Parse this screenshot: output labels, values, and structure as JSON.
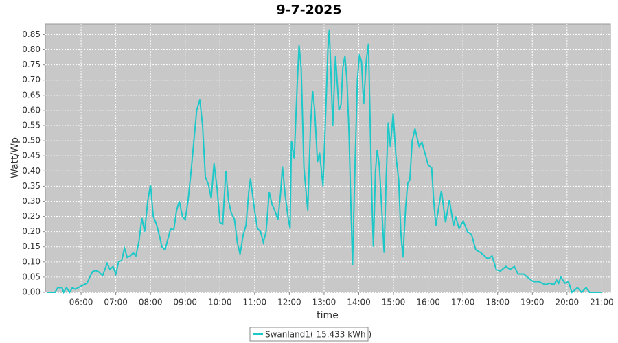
{
  "chart_data": {
    "type": "line",
    "title": "9-7-2025",
    "x_label": "time",
    "y_label": "Watt/Wp",
    "xlim": [
      4.97,
      21.25
    ],
    "ylim": [
      0,
      0.885
    ],
    "grid": true,
    "legend": "bottom",
    "xticks": [
      {
        "value": 6,
        "label": "06:00"
      },
      {
        "value": 7,
        "label": "07:00"
      },
      {
        "value": 8,
        "label": "08:00"
      },
      {
        "value": 9,
        "label": "09:00"
      },
      {
        "value": 10,
        "label": "10:00"
      },
      {
        "value": 11,
        "label": "11:00"
      },
      {
        "value": 12,
        "label": "12:00"
      },
      {
        "value": 13,
        "label": "13:00"
      },
      {
        "value": 14,
        "label": "14:00"
      },
      {
        "value": 15,
        "label": "15:00"
      },
      {
        "value": 16,
        "label": "16:00"
      },
      {
        "value": 17,
        "label": "17:00"
      },
      {
        "value": 18,
        "label": "18:00"
      },
      {
        "value": 19,
        "label": "19:00"
      },
      {
        "value": 20,
        "label": "20:00"
      },
      {
        "value": 21,
        "label": "21:00"
      }
    ],
    "yticks": [
      {
        "value": 0,
        "label": "0.00"
      },
      {
        "value": 0.05,
        "label": "0.05"
      },
      {
        "value": 0.1,
        "label": "0.10"
      },
      {
        "value": 0.15,
        "label": "0.15"
      },
      {
        "value": 0.2,
        "label": "0.20"
      },
      {
        "value": 0.25,
        "label": "0.25"
      },
      {
        "value": 0.3,
        "label": "0.30"
      },
      {
        "value": 0.35,
        "label": "0.35"
      },
      {
        "value": 0.4,
        "label": "0.40"
      },
      {
        "value": 0.45,
        "label": "0.45"
      },
      {
        "value": 0.5,
        "label": "0.50"
      },
      {
        "value": 0.55,
        "label": "0.55"
      },
      {
        "value": 0.6,
        "label": "0.60"
      },
      {
        "value": 0.65,
        "label": "0.65"
      },
      {
        "value": 0.7,
        "label": "0.70"
      },
      {
        "value": 0.75,
        "label": "0.75"
      },
      {
        "value": 0.8,
        "label": "0.80"
      },
      {
        "value": 0.85,
        "label": "0.85"
      }
    ],
    "x": [
      5.01,
      5.25,
      5.33,
      5.45,
      5.5,
      5.58,
      5.67,
      5.75,
      5.83,
      5.92,
      6.0,
      6.08,
      6.17,
      6.25,
      6.33,
      6.42,
      6.5,
      6.62,
      6.75,
      6.83,
      6.92,
      7.0,
      7.08,
      7.17,
      7.25,
      7.33,
      7.42,
      7.5,
      7.58,
      7.67,
      7.75,
      7.83,
      7.92,
      8.0,
      8.08,
      8.17,
      8.25,
      8.33,
      8.42,
      8.5,
      8.58,
      8.67,
      8.75,
      8.83,
      8.92,
      9.0,
      9.08,
      9.17,
      9.25,
      9.33,
      9.42,
      9.5,
      9.58,
      9.67,
      9.75,
      9.83,
      9.92,
      10.0,
      10.08,
      10.17,
      10.25,
      10.33,
      10.42,
      10.5,
      10.58,
      10.67,
      10.75,
      10.83,
      10.88,
      11.0,
      11.08,
      11.17,
      11.25,
      11.33,
      11.42,
      11.5,
      11.58,
      11.67,
      11.75,
      11.8,
      11.88,
      11.96,
      12.02,
      12.06,
      12.14,
      12.22,
      12.28,
      12.34,
      12.42,
      12.53,
      12.61,
      12.67,
      12.73,
      12.81,
      12.87,
      12.97,
      13.05,
      13.11,
      13.15,
      13.19,
      13.25,
      13.33,
      13.43,
      13.49,
      13.54,
      13.6,
      13.66,
      13.72,
      13.76,
      13.82,
      13.88,
      13.96,
      14.02,
      14.08,
      14.14,
      14.22,
      14.28,
      14.32,
      14.38,
      14.42,
      14.48,
      14.53,
      14.59,
      14.65,
      14.73,
      14.79,
      14.85,
      14.91,
      14.99,
      15.07,
      15.15,
      15.21,
      15.27,
      15.35,
      15.41,
      15.47,
      15.54,
      15.62,
      15.74,
      15.82,
      16.0,
      16.1,
      16.16,
      16.22,
      16.38,
      16.5,
      16.61,
      16.73,
      16.79,
      16.89,
      17.01,
      17.13,
      17.25,
      17.37,
      17.52,
      17.72,
      17.84,
      17.96,
      18.08,
      18.24,
      18.36,
      18.48,
      18.59,
      18.75,
      18.91,
      19.03,
      19.19,
      19.37,
      19.5,
      19.62,
      19.7,
      19.76,
      19.82,
      19.94,
      20.04,
      20.14,
      20.3,
      20.42,
      20.55,
      20.65,
      20.99
    ],
    "series": [
      {
        "name": "Swanland1( 15.433 kWh )",
        "color": "#1cc8c8",
        "values": [
          0,
          0,
          0.015,
          0.015,
          0,
          0.015,
          0,
          0.015,
          0.01,
          0.015,
          0.02,
          0.025,
          0.03,
          0.05,
          0.068,
          0.072,
          0.068,
          0.055,
          0.095,
          0.075,
          0.085,
          0.06,
          0.1,
          0.105,
          0.145,
          0.115,
          0.12,
          0.13,
          0.12,
          0.17,
          0.245,
          0.2,
          0.3,
          0.355,
          0.25,
          0.225,
          0.19,
          0.15,
          0.14,
          0.175,
          0.21,
          0.205,
          0.27,
          0.3,
          0.25,
          0.24,
          0.3,
          0.4,
          0.5,
          0.6,
          0.635,
          0.55,
          0.38,
          0.355,
          0.31,
          0.425,
          0.34,
          0.23,
          0.225,
          0.4,
          0.3,
          0.26,
          0.24,
          0.165,
          0.125,
          0.19,
          0.22,
          0.33,
          0.375,
          0.27,
          0.21,
          0.2,
          0.165,
          0.2,
          0.33,
          0.29,
          0.27,
          0.24,
          0.33,
          0.415,
          0.32,
          0.25,
          0.21,
          0.5,
          0.44,
          0.67,
          0.815,
          0.74,
          0.41,
          0.27,
          0.55,
          0.665,
          0.6,
          0.43,
          0.46,
          0.35,
          0.6,
          0.8,
          0.865,
          0.75,
          0.55,
          0.78,
          0.6,
          0.62,
          0.74,
          0.78,
          0.7,
          0.52,
          0.34,
          0.09,
          0.37,
          0.7,
          0.785,
          0.76,
          0.62,
          0.77,
          0.82,
          0.6,
          0.3,
          0.15,
          0.4,
          0.47,
          0.42,
          0.3,
          0.13,
          0.38,
          0.56,
          0.48,
          0.59,
          0.45,
          0.37,
          0.2,
          0.115,
          0.28,
          0.36,
          0.37,
          0.5,
          0.54,
          0.48,
          0.495,
          0.42,
          0.41,
          0.3,
          0.22,
          0.335,
          0.23,
          0.305,
          0.22,
          0.25,
          0.21,
          0.235,
          0.2,
          0.19,
          0.14,
          0.13,
          0.11,
          0.12,
          0.075,
          0.07,
          0.085,
          0.075,
          0.085,
          0.06,
          0.06,
          0.045,
          0.035,
          0.035,
          0.025,
          0.03,
          0.025,
          0.04,
          0.03,
          0.05,
          0.03,
          0.035,
          0,
          0.015,
          0,
          0.015,
          0,
          0
        ]
      }
    ]
  }
}
